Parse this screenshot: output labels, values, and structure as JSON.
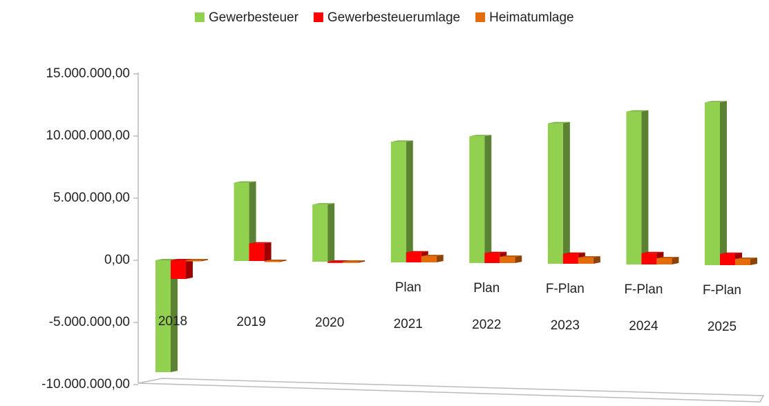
{
  "chart_data": {
    "type": "bar3d",
    "categories": [
      [
        "2018"
      ],
      [
        "2019"
      ],
      [
        "2020"
      ],
      [
        "Plan",
        "2021"
      ],
      [
        "Plan",
        "2022"
      ],
      [
        "F-Plan",
        "2023"
      ],
      [
        "F-Plan",
        "2024"
      ],
      [
        "F-Plan",
        "2025"
      ]
    ],
    "series": [
      {
        "name": "Gewerbesteuer",
        "color": "#92d050",
        "values": [
          -9000000,
          6300000,
          4600000,
          9700000,
          10200000,
          11300000,
          12300000,
          13100000
        ]
      },
      {
        "name": "Gewerbesteuerumlage",
        "color": "#ff0000",
        "values": [
          -1500000,
          1400000,
          -100000,
          800000,
          800000,
          800000,
          900000,
          900000
        ]
      },
      {
        "name": "Heimatumlage",
        "color": "#e46c0a",
        "values": [
          0,
          0,
          -100000,
          500000,
          500000,
          500000,
          500000,
          500000
        ]
      }
    ],
    "ylim": [
      -10000000,
      15000000
    ],
    "yticks": [
      {
        "value": -10000000,
        "label": "-10.000.000,00"
      },
      {
        "value": -5000000,
        "label": "-5.000.000,00"
      },
      {
        "value": 0,
        "label": "0,00"
      },
      {
        "value": 5000000,
        "label": "5.000.000,00"
      },
      {
        "value": 10000000,
        "label": "10.000.000,00"
      },
      {
        "value": 15000000,
        "label": "15.000.000,00"
      }
    ],
    "legend": "top"
  }
}
